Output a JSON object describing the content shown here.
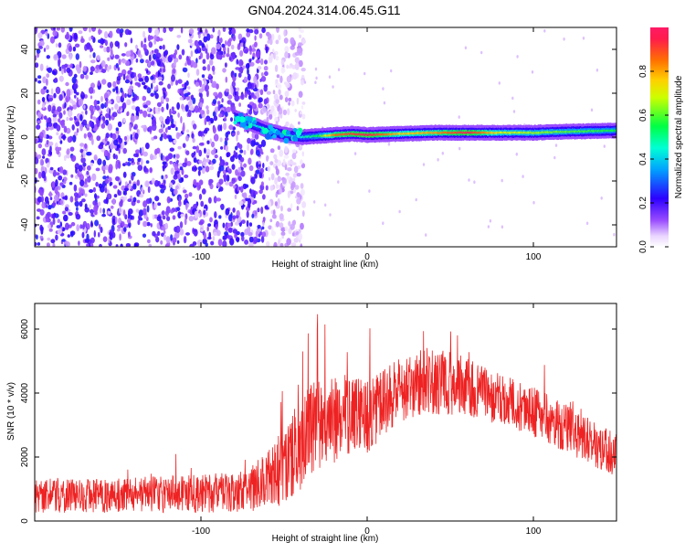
{
  "title": "GN04.2024.314.06.45.G11",
  "chart_data": [
    {
      "type": "heatmap",
      "xlabel": "Height of straight line (km)",
      "ylabel": "Frequency (Hz)",
      "xlim": [
        -200,
        150
      ],
      "ylim": [
        -50,
        50
      ],
      "x_ticks": [
        -100,
        0,
        100
      ],
      "y_ticks": [
        -40,
        -20,
        0,
        20,
        40
      ],
      "colorbar": {
        "label": "Normalized spectral amplitude",
        "range": [
          0,
          1
        ],
        "ticks": [
          "0.0",
          "0.2",
          "0.4",
          "0.6",
          "0.8"
        ],
        "colors": [
          "#ffffff",
          "#9a4dff",
          "#2d00ff",
          "#00e0ff",
          "#00ff66",
          "#ffff00",
          "#ff8000",
          "#ff1a4d"
        ]
      },
      "ridge": {
        "x": [
          -80,
          -70,
          -60,
          -50,
          -40,
          -30,
          -20,
          -10,
          0,
          20,
          40,
          60,
          80,
          100,
          120,
          150
        ],
        "y": [
          9,
          6,
          3,
          1,
          0,
          0.5,
          1,
          1.5,
          1,
          1.5,
          2,
          2,
          2,
          2,
          2.5,
          3
        ],
        "amplitude": [
          0.45,
          0.45,
          0.4,
          0.4,
          0.45,
          0.55,
          0.85,
          0.9,
          0.95,
          0.75,
          0.8,
          0.95,
          0.7,
          0.65,
          0.6,
          0.55
        ]
      },
      "noise_region": {
        "x_range": [
          -200,
          -50
        ],
        "amplitude_range": [
          0.05,
          0.25
        ]
      }
    },
    {
      "type": "line",
      "xlabel": "Height of straight line (km)",
      "ylabel": "SNR (10 * v/v)",
      "xlim": [
        -200,
        150
      ],
      "ylim": [
        0,
        6800
      ],
      "x_ticks": [
        -100,
        0,
        100
      ],
      "y_ticks": [
        0,
        2000,
        4000,
        6000
      ],
      "color": "#ee2222",
      "envelope": {
        "x": [
          -200,
          -150,
          -100,
          -70,
          -60,
          -50,
          -40,
          -30,
          -20,
          -10,
          0,
          10,
          20,
          30,
          40,
          50,
          60,
          80,
          100,
          120,
          140,
          150
        ],
        "mean": [
          800,
          800,
          850,
          950,
          1300,
          1700,
          2400,
          3000,
          3200,
          3300,
          3300,
          3700,
          4100,
          4300,
          4400,
          4300,
          4200,
          3800,
          3400,
          2900,
          2300,
          2100
        ],
        "spread": [
          550,
          550,
          600,
          650,
          900,
          1200,
          1500,
          1600,
          1400,
          1300,
          1200,
          1100,
          1000,
          1000,
          1100,
          1000,
          900,
          800,
          800,
          750,
          700,
          700
        ]
      }
    }
  ]
}
